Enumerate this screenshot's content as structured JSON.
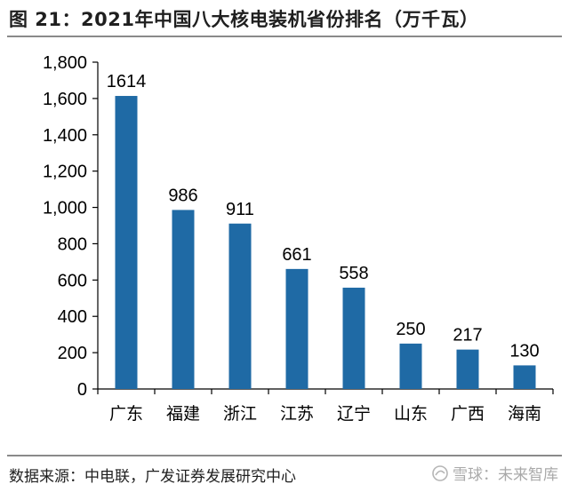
{
  "figure": {
    "title": "图 21：2021年中国八大核电装机省份排名（万千瓦）",
    "source": "数据来源：中电联，广发证券发展研究中心",
    "watermark": "雪球：未来智库"
  },
  "chart_data": {
    "type": "bar",
    "categories": [
      "广东",
      "福建",
      "浙江",
      "江苏",
      "辽宁",
      "山东",
      "广西",
      "海南"
    ],
    "values": [
      1614,
      986,
      911,
      661,
      558,
      250,
      217,
      130
    ],
    "value_labels": [
      "1614",
      "986",
      "911",
      "661",
      "558",
      "250",
      "217",
      "130"
    ],
    "ylim": [
      0,
      1800
    ],
    "yticks": [
      0,
      200,
      400,
      600,
      800,
      1000,
      1200,
      1400,
      1600,
      1800
    ],
    "ytick_labels": [
      "0",
      "200",
      "400",
      "600",
      "800",
      "1,000",
      "1,200",
      "1,400",
      "1,600",
      "1,800"
    ],
    "grid": false,
    "legend": "none",
    "bar_color": "#1f6aa5"
  }
}
